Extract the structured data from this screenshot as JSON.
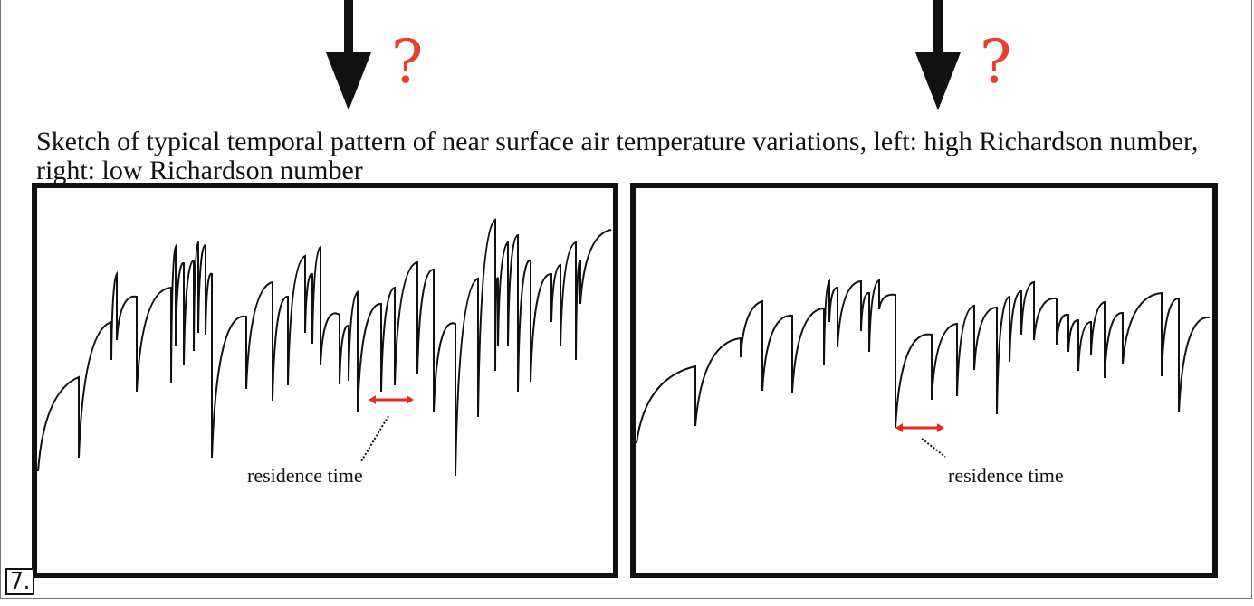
{
  "caption": "Sketch of typical temporal pattern of near surface air temperature variations, left: high Richardson number, right: low Richardson number",
  "question_mark": "?",
  "figure_number": "7.",
  "panels": {
    "left": {
      "annotation": "residence time"
    },
    "right": {
      "annotation": "residence time"
    }
  },
  "colors": {
    "line": "#111111",
    "accent": "#e8402a",
    "marker": "#e32b22"
  }
}
